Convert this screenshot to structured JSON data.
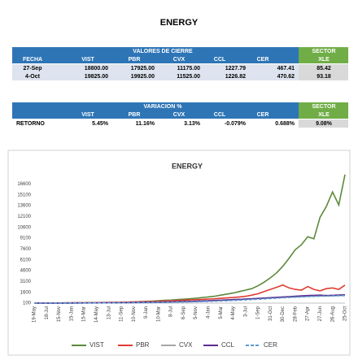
{
  "title": "ENERGY",
  "table1": {
    "group_header": "VALORES DE CIERRE",
    "sector_header": "SECTOR",
    "columns": [
      "FECHA",
      "VIST",
      "PBR",
      "CVX",
      "CCL",
      "CER",
      "XLE"
    ],
    "rows": [
      [
        "27-Sep",
        "18800.00",
        "17925.00",
        "11175.00",
        "1227.79",
        "467.41",
        "85.42"
      ],
      [
        "4-Oct",
        "19825.00",
        "19925.00",
        "11525.00",
        "1226.82",
        "470.62",
        "93.18"
      ]
    ]
  },
  "table2": {
    "group_header": "VARIACION %",
    "sector_header": "SECTOR",
    "columns": [
      "VIST",
      "PBR",
      "CVX",
      "CCL",
      "CER",
      "XLE"
    ],
    "rows": [
      [
        "RETORNO",
        "5.45%",
        "11.16%",
        "3.13%",
        "-0.079%",
        "0.688%",
        "9.08%"
      ]
    ]
  },
  "chart_data": {
    "type": "line",
    "title": "ENERGY",
    "categories": [
      "19-May",
      null,
      "18-Jul",
      null,
      "15-Nov",
      null,
      "15-Jan",
      null,
      "15-Mar",
      null,
      "14-May",
      null,
      "13-Jul",
      null,
      "11-Sep",
      null,
      "10-Nov",
      null,
      "9-Jan",
      null,
      "10-Mar",
      null,
      "8-Jul",
      null,
      "6-Sep",
      null,
      "5-Nov",
      null,
      "4-Jan",
      null,
      "5-Mar",
      null,
      "4-May",
      null,
      "3-Jul",
      null,
      "1-Sep",
      null,
      "31-Oct",
      null,
      "30-Dec",
      null,
      "28-Feb",
      null,
      "27-Apr",
      null,
      "27-Jun",
      null,
      "26-Aug",
      null,
      "25-Oct"
    ],
    "series": [
      {
        "name": "VIST",
        "color": "#5b8a3a",
        "values": [
          100,
          110,
          105,
          120,
          115,
          130,
          125,
          140,
          150,
          145,
          160,
          170,
          180,
          190,
          200,
          230,
          260,
          300,
          340,
          380,
          430,
          480,
          520,
          580,
          640,
          700,
          780,
          860,
          950,
          1050,
          1200,
          1350,
          1500,
          1700,
          1900,
          2100,
          2500,
          3000,
          3600,
          4300,
          5200,
          6300,
          7500,
          8200,
          9300,
          9000,
          12000,
          13500,
          15500,
          13700,
          17900
        ]
      },
      {
        "name": "PBR",
        "color": "#e03c31",
        "values": [
          100,
          105,
          110,
          110,
          120,
          130,
          140,
          150,
          160,
          170,
          180,
          190,
          200,
          210,
          220,
          240,
          260,
          280,
          300,
          330,
          360,
          400,
          430,
          460,
          500,
          540,
          580,
          620,
          660,
          700,
          760,
          820,
          880,
          950,
          1050,
          1200,
          1400,
          1700,
          2000,
          2300,
          2600,
          2200,
          2000,
          1900,
          2400,
          2000,
          1800,
          2100,
          2200,
          2000,
          2600
        ]
      },
      {
        "name": "CVX",
        "color": "#a5a5a5",
        "values": [
          100,
          100,
          105,
          110,
          115,
          120,
          120,
          125,
          130,
          135,
          140,
          145,
          150,
          160,
          170,
          180,
          190,
          200,
          210,
          230,
          250,
          270,
          290,
          310,
          330,
          350,
          380,
          410,
          440,
          470,
          500,
          540,
          580,
          620,
          660,
          700,
          740,
          780,
          820,
          860,
          900,
          930,
          960,
          990,
          1020,
          1050,
          1080,
          1100,
          1120,
          1150,
          1180
        ]
      },
      {
        "name": "CCL",
        "color": "#5b2c8f",
        "values": [
          100,
          100,
          100,
          105,
          110,
          110,
          115,
          120,
          125,
          130,
          135,
          140,
          145,
          150,
          160,
          170,
          180,
          190,
          200,
          215,
          230,
          250,
          270,
          290,
          310,
          330,
          360,
          390,
          420,
          460,
          500,
          540,
          580,
          620,
          660,
          700,
          750,
          800,
          850,
          900,
          950,
          1000,
          1050,
          1100,
          1150,
          1180,
          1200,
          1150,
          1180,
          1220,
          1250
        ]
      },
      {
        "name": "CER",
        "color": "#5b9bd5",
        "line_style": "dashed",
        "values": [
          100,
          102,
          104,
          106,
          108,
          110,
          113,
          116,
          120,
          124,
          128,
          132,
          136,
          140,
          145,
          150,
          156,
          162,
          170,
          180,
          190,
          200,
          215,
          230,
          250,
          270,
          290,
          310,
          340,
          370,
          400,
          430,
          470,
          510,
          550,
          590,
          640,
          690,
          740,
          790,
          840,
          880,
          920,
          960,
          1000,
          1030,
          1060,
          1080,
          1100,
          1120,
          1140
        ]
      }
    ],
    "ylim": [
      100,
      18000
    ],
    "yticks": [
      100,
      1600,
      3100,
      4600,
      6100,
      7600,
      9100,
      10600,
      12100,
      13600,
      15100,
      16600
    ],
    "grid": false,
    "legend": "bottom"
  }
}
